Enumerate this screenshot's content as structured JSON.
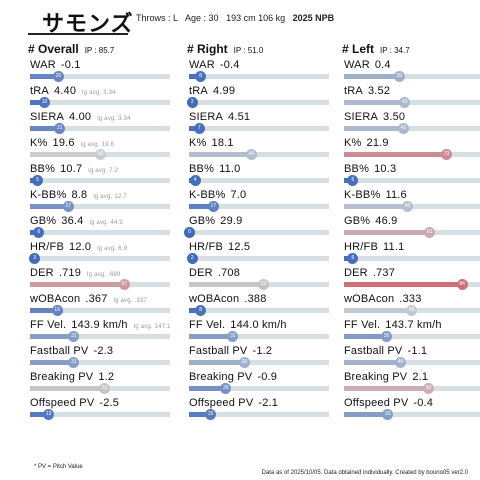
{
  "header": {
    "title": "サモンズ",
    "throws": "Throws : L",
    "age": "Age : 30",
    "body": "193 cm 106 kg",
    "season": "2025 NPB"
  },
  "columns": [
    {
      "title": "# Overall",
      "ip": "IP : 85.7",
      "rows": [
        {
          "label": "WAR",
          "value": "-0.1",
          "lg": "",
          "pct": 20
        },
        {
          "label": "tRA",
          "value": "4.40",
          "lg": "lg avg. 3.34",
          "pct": 10
        },
        {
          "label": "SIERA",
          "value": "4.00",
          "lg": "lg avg. 3.34",
          "pct": 21
        },
        {
          "label": "K%",
          "value": "19.6",
          "lg": "lg avg. 19.6",
          "pct": 50
        },
        {
          "label": "BB%",
          "value": "10.7",
          "lg": "lg avg. 7.2",
          "pct": 5
        },
        {
          "label": "K-BB%",
          "value": "8.8",
          "lg": "lg avg. 12.7",
          "pct": 27
        },
        {
          "label": "GB%",
          "value": "36.4",
          "lg": "lg avg. 44.9",
          "pct": 6
        },
        {
          "label": "HR/FB",
          "value": "12.0",
          "lg": "lg avg. 6.9",
          "pct": 3
        },
        {
          "label": "DER",
          "value": ".719",
          "lg": "lg avg. .699",
          "pct": 67
        },
        {
          "label": "wOBAcon",
          "value": ".367",
          "lg": "lg avg. .337",
          "pct": 19
        },
        {
          "label": "FF Vel.",
          "value": "143.9 km/h",
          "lg": "lg avg. 147.1",
          "pct": 31
        },
        {
          "label": "Fastball PV",
          "value": "-2.3",
          "lg": "",
          "pct": 31
        },
        {
          "label": "Breaking PV",
          "value": "1.2",
          "lg": "",
          "pct": 53
        },
        {
          "label": "Offspeed PV",
          "value": "-2.5",
          "lg": "",
          "pct": 13
        }
      ]
    },
    {
      "title": "# Right",
      "ip": "IP : 51.0",
      "rows": [
        {
          "label": "WAR",
          "value": "-0.4",
          "lg": "",
          "pct": 8
        },
        {
          "label": "tRA",
          "value": "4.99",
          "lg": "",
          "pct": 2
        },
        {
          "label": "SIERA",
          "value": "4.51",
          "lg": "",
          "pct": 7
        },
        {
          "label": "K%",
          "value": "18.1",
          "lg": "",
          "pct": 44
        },
        {
          "label": "BB%",
          "value": "11.0",
          "lg": "",
          "pct": 4
        },
        {
          "label": "K-BB%",
          "value": "7.0",
          "lg": "",
          "pct": 17
        },
        {
          "label": "GB%",
          "value": "29.9",
          "lg": "",
          "pct": 0
        },
        {
          "label": "HR/FB",
          "value": "12.5",
          "lg": "",
          "pct": 2
        },
        {
          "label": "DER",
          "value": ".708",
          "lg": "",
          "pct": 53
        },
        {
          "label": "wOBAcon",
          "value": ".388",
          "lg": "",
          "pct": 8
        },
        {
          "label": "FF Vel.",
          "value": "144.0 km/h",
          "lg": "",
          "pct": 31
        },
        {
          "label": "Fastball PV",
          "value": "-1.2",
          "lg": "",
          "pct": 39
        },
        {
          "label": "Breaking PV",
          "value": "-0.9",
          "lg": "",
          "pct": 26
        },
        {
          "label": "Offspeed PV",
          "value": "-2.1",
          "lg": "",
          "pct": 15
        }
      ]
    },
    {
      "title": "# Left",
      "ip": "IP : 34.7",
      "rows": [
        {
          "label": "WAR",
          "value": "0.4",
          "lg": "",
          "pct": 39
        },
        {
          "label": "tRA",
          "value": "3.52",
          "lg": "",
          "pct": 43
        },
        {
          "label": "SIERA",
          "value": "3.50",
          "lg": "",
          "pct": 42
        },
        {
          "label": "K%",
          "value": "21.9",
          "lg": "",
          "pct": 73
        },
        {
          "label": "BB%",
          "value": "10.3",
          "lg": "",
          "pct": 6
        },
        {
          "label": "K-BB%",
          "value": "11.6",
          "lg": "",
          "pct": 45
        },
        {
          "label": "GB%",
          "value": "46.9",
          "lg": "",
          "pct": 61
        },
        {
          "label": "HR/FB",
          "value": "11.1",
          "lg": "",
          "pct": 6
        },
        {
          "label": "DER",
          "value": ".737",
          "lg": "",
          "pct": 84
        },
        {
          "label": "wOBAcon",
          "value": ".333",
          "lg": "",
          "pct": 48
        },
        {
          "label": "FF Vel.",
          "value": "143.7 km/h",
          "lg": "",
          "pct": 30
        },
        {
          "label": "Fastball PV",
          "value": "-1.1",
          "lg": "",
          "pct": 40
        },
        {
          "label": "Breaking PV",
          "value": "2.1",
          "lg": "",
          "pct": 60
        },
        {
          "label": "Offspeed PV",
          "value": "-0.4",
          "lg": "",
          "pct": 31
        }
      ]
    }
  ],
  "footnote": "* PV = Pitch Value",
  "credit": "Data as of 2025/10/05. Data obtained individually. Created by bouno05  ver2.0"
}
